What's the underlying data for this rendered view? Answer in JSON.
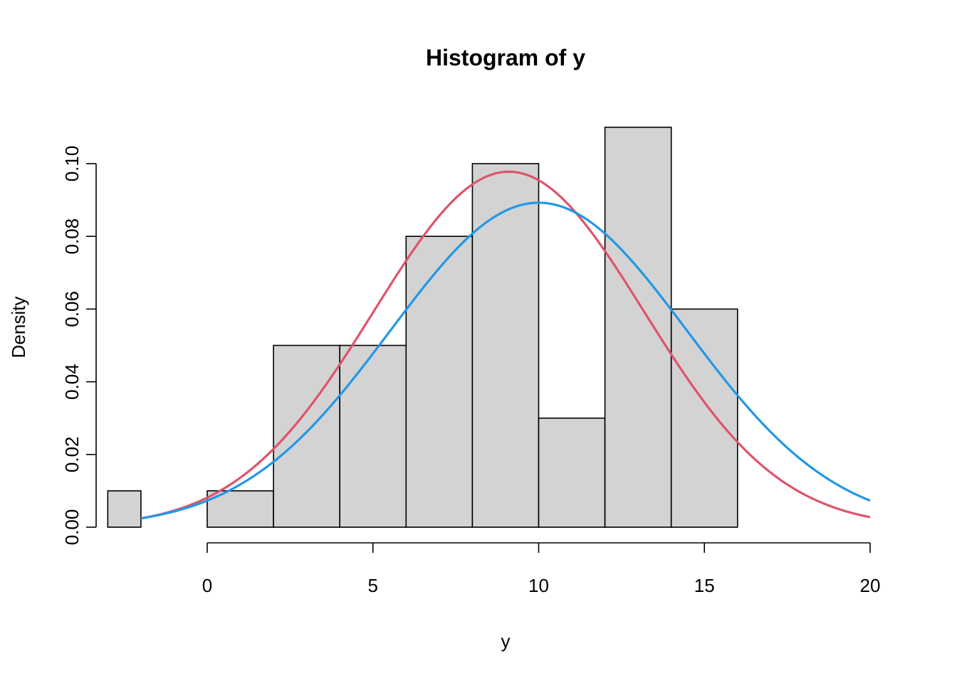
{
  "chart_data": {
    "type": "bar",
    "title": "Histogram of y",
    "xlabel": "y",
    "ylabel": "Density",
    "bins": [
      {
        "start": -3,
        "end": -2,
        "density": 0.01
      },
      {
        "start": 0,
        "end": 2,
        "density": 0.01
      },
      {
        "start": 2,
        "end": 4,
        "density": 0.05
      },
      {
        "start": 4,
        "end": 6,
        "density": 0.05
      },
      {
        "start": 6,
        "end": 8,
        "density": 0.08
      },
      {
        "start": 8,
        "end": 10,
        "density": 0.1
      },
      {
        "start": 10,
        "end": 12,
        "density": 0.03
      },
      {
        "start": 12,
        "end": 14,
        "density": 0.11
      },
      {
        "start": 14,
        "end": 16,
        "density": 0.06
      }
    ],
    "series": [
      {
        "color": "#DF536B",
        "mean": 9.1,
        "sd": 4.08
      },
      {
        "color": "#2297E6",
        "mean": 10.0,
        "sd": 4.47
      }
    ],
    "curve_x_range": [
      -2,
      20
    ],
    "x_ticks": [
      0,
      5,
      10,
      15,
      20
    ],
    "x_tick_labels": [
      "0",
      "5",
      "10",
      "15",
      "20"
    ],
    "y_ticks": [
      0,
      0.02,
      0.04,
      0.06,
      0.08,
      0.1
    ],
    "y_tick_labels": [
      "0.00",
      "0.02",
      "0.04",
      "0.06",
      "0.08",
      "0.10"
    ],
    "xlim": [
      -3,
      20
    ],
    "ylim": [
      0,
      0.11
    ],
    "bar_color": "#D3D3D3",
    "grid": false
  }
}
